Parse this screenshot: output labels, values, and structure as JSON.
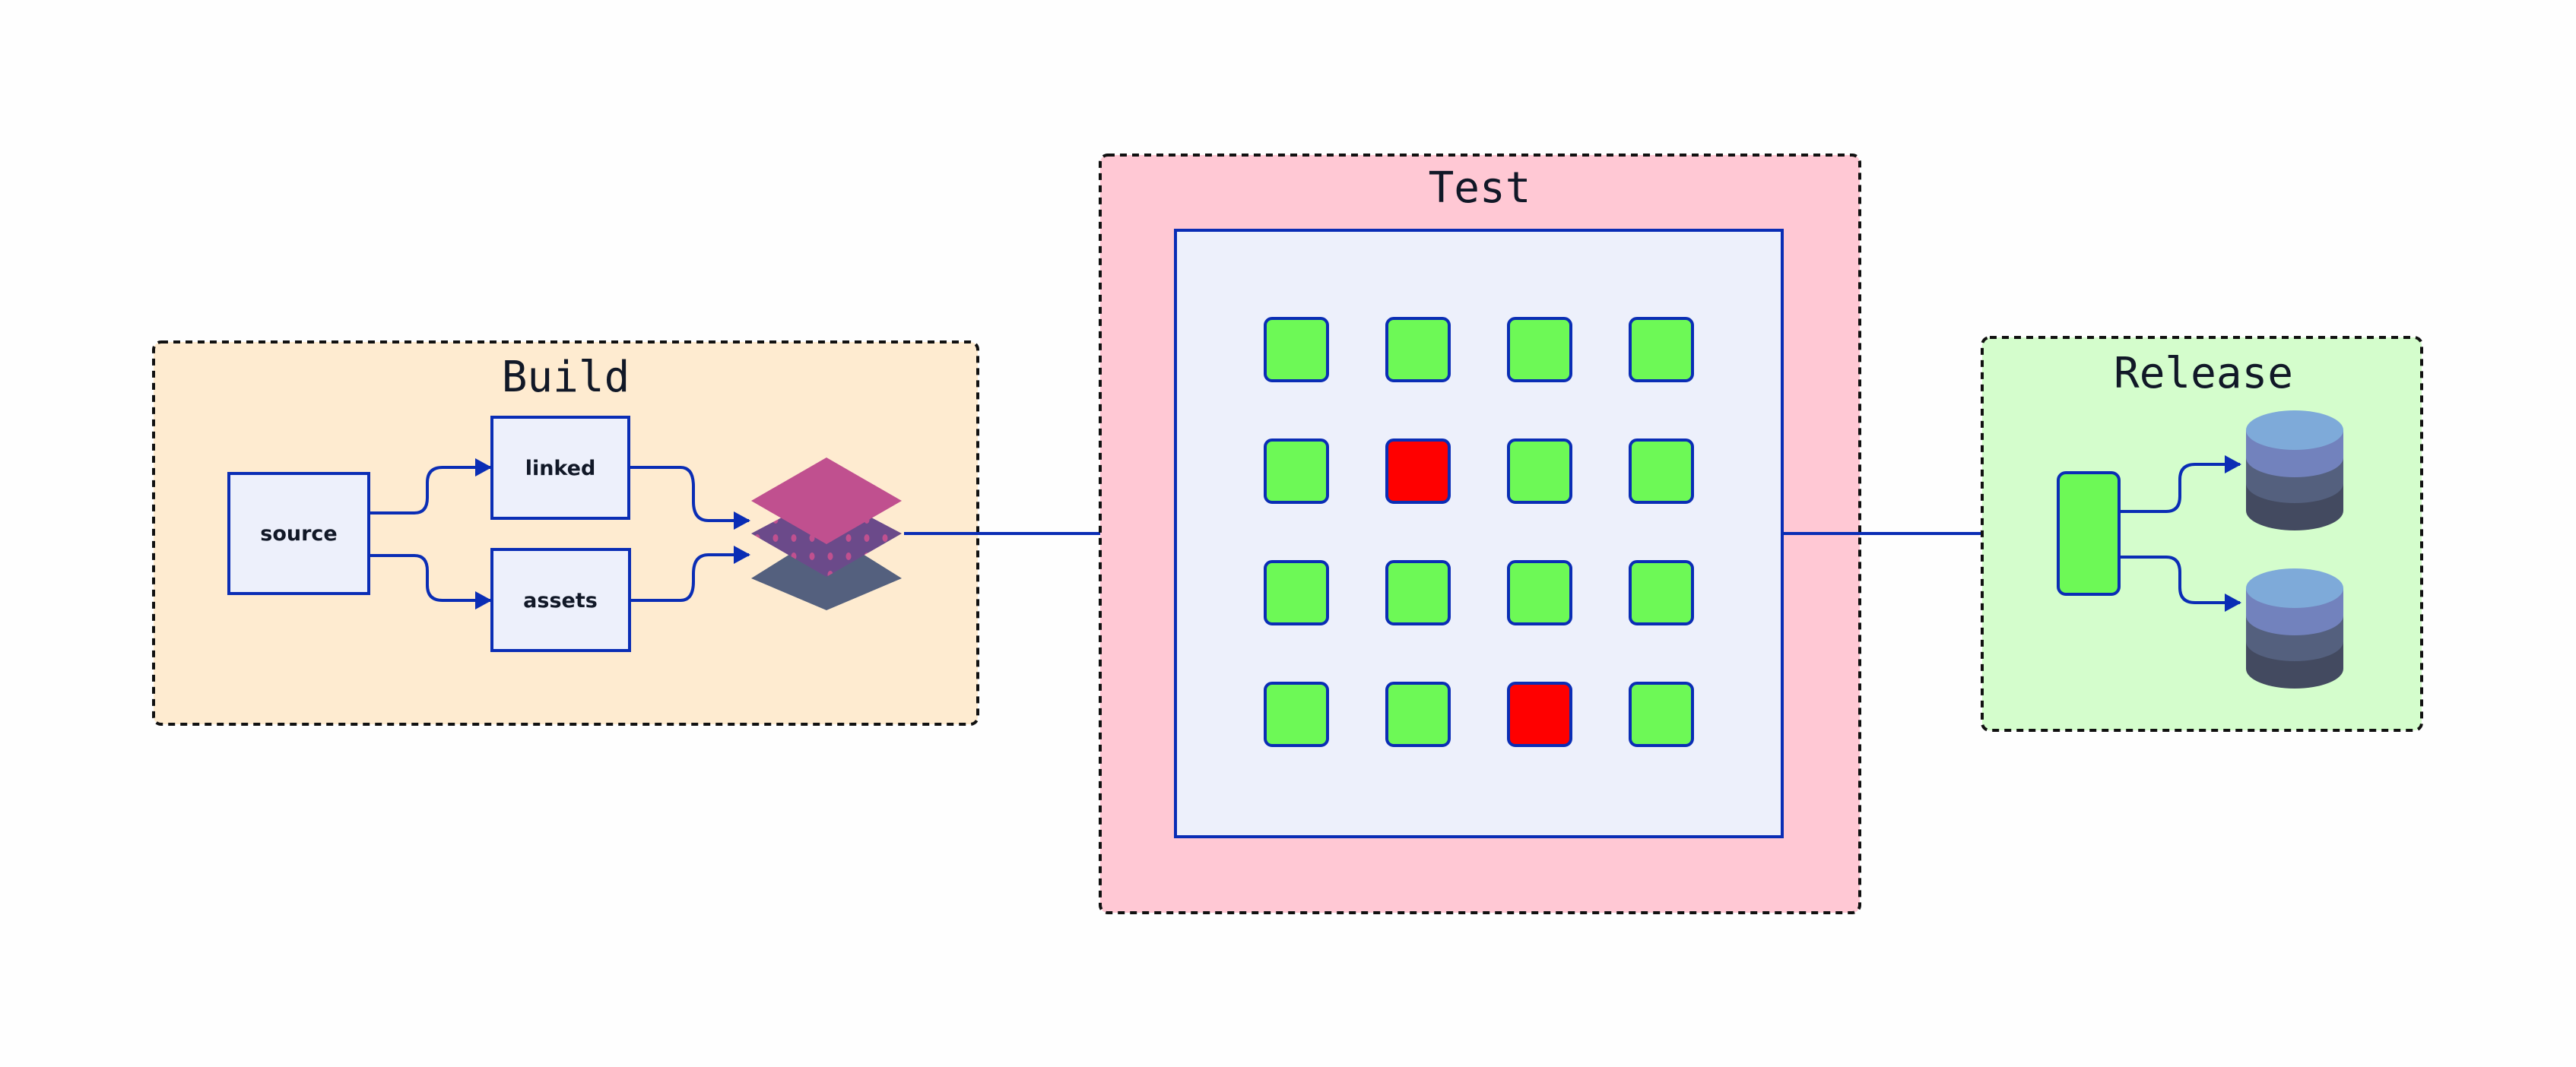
{
  "stages": {
    "build": {
      "title": "Build",
      "source": "source",
      "linked": "linked",
      "assets": "assets"
    },
    "test": {
      "title": "Test",
      "grid": [
        [
          "pass",
          "pass",
          "pass",
          "pass"
        ],
        [
          "pass",
          "fail",
          "pass",
          "pass"
        ],
        [
          "pass",
          "pass",
          "pass",
          "pass"
        ],
        [
          "pass",
          "pass",
          "fail",
          "pass"
        ]
      ]
    },
    "release": {
      "title": "Release"
    }
  },
  "colors": {
    "edge": "#0a2db5",
    "build_bg": "#feebd0",
    "test_bg": "#ffc8d4",
    "test_inner_bg": "#edf0fb",
    "release_bg": "#d4fdcc",
    "pass": "#6df956",
    "fail": "#ff0000",
    "node_bg": "#edf0fb"
  },
  "icons": {
    "artifact": "layers-icon",
    "storage": "database-icon"
  }
}
